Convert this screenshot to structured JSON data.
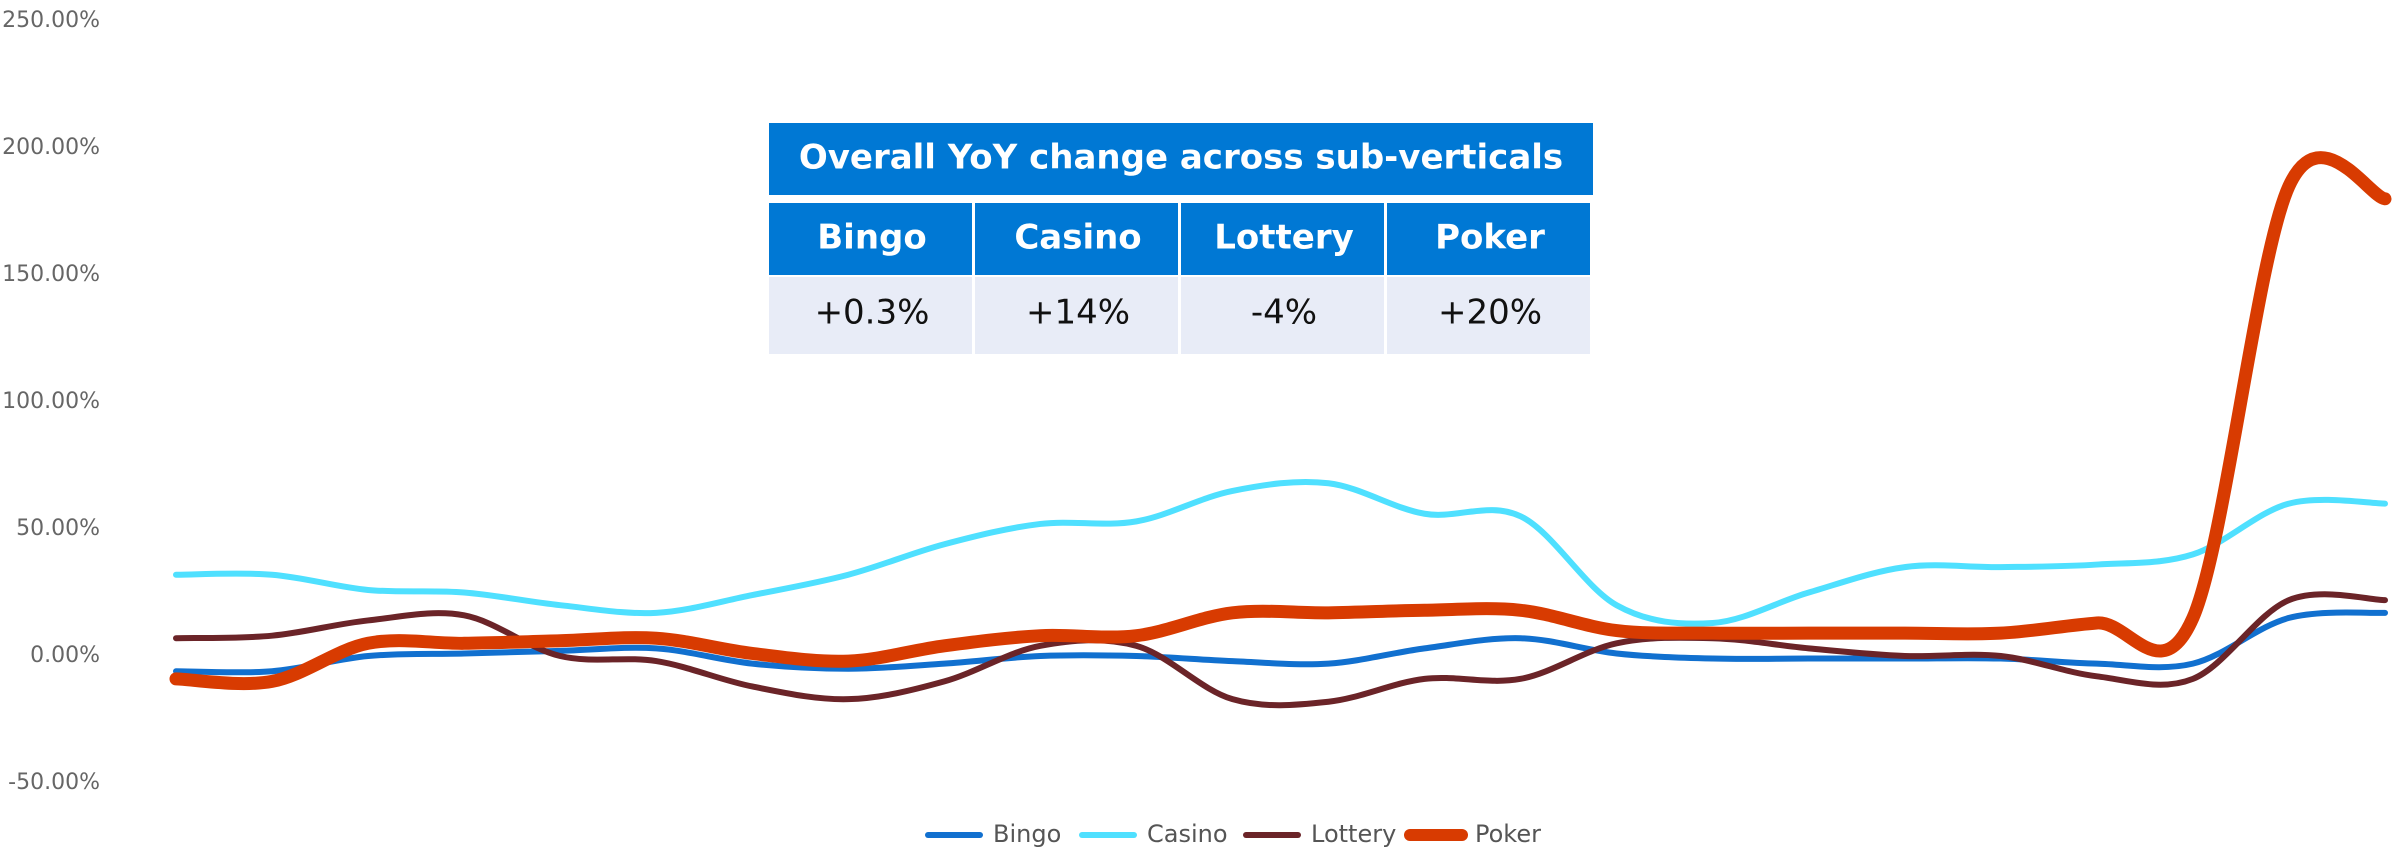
{
  "chart_data": {
    "type": "line",
    "categories": [
      null,
      null,
      null,
      null,
      null,
      null,
      null,
      null,
      null,
      null,
      null,
      null,
      null,
      null,
      null,
      null,
      null,
      null,
      null,
      null,
      null,
      null,
      null,
      null
    ],
    "series": [
      {
        "name": "Bingo",
        "color": "#1170cf",
        "values": [
          -6,
          -6,
          0,
          1,
          2,
          3,
          -3,
          -5,
          -3,
          0,
          0,
          -2,
          -3,
          3,
          7,
          1,
          -1,
          -1,
          -1,
          -1,
          -3,
          -3,
          15,
          17
        ]
      },
      {
        "name": "Casino",
        "color": "#4fe0ff",
        "values": [
          32,
          32,
          26,
          25,
          20,
          17,
          24,
          32,
          44,
          52,
          53,
          65,
          68,
          56,
          55,
          20,
          13,
          25,
          35,
          35,
          36,
          40,
          60,
          60
        ]
      },
      {
        "name": "Lottery",
        "color": "#6b2428",
        "values": [
          7,
          8,
          14,
          16,
          0,
          -2,
          -12,
          -17,
          -10,
          4,
          4,
          -17,
          -18,
          -9,
          -9,
          5,
          7,
          3,
          0,
          0,
          -8,
          -9,
          22,
          22
        ]
      },
      {
        "name": "Poker",
        "color": "#d83b01",
        "values": [
          -9,
          -10,
          5,
          5,
          6,
          7,
          1,
          -2,
          4,
          8,
          8,
          17,
          17,
          18,
          18,
          10,
          9,
          9,
          9,
          9,
          13,
          15,
          185,
          180
        ]
      }
    ],
    "ylim": [
      -50,
      250
    ],
    "yticks": [
      {
        "value": -50,
        "label": "-50.00%"
      },
      {
        "value": 0,
        "label": "0.00%"
      },
      {
        "value": 50,
        "label": "50.00%"
      },
      {
        "value": 100,
        "label": "100.00%"
      },
      {
        "value": 150,
        "label": "150.00%"
      },
      {
        "value": 200,
        "label": "200.00%"
      },
      {
        "value": 250,
        "label": "250.00%"
      }
    ],
    "grid": false,
    "legend": "bottom"
  },
  "summary_table": {
    "title": "Overall YoY change across sub-verticals",
    "columns": [
      "Bingo",
      "Casino",
      "Lottery",
      "Poker"
    ],
    "values": [
      "+0.3%",
      "+14%",
      "-4%",
      "+20%"
    ]
  }
}
